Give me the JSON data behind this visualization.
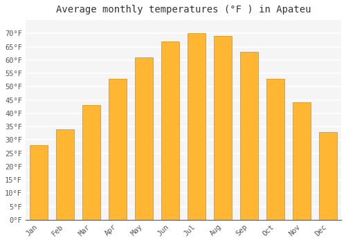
{
  "title": "Average monthly temperatures (°F ) in Apateu",
  "months": [
    "Jan",
    "Feb",
    "Mar",
    "Apr",
    "May",
    "Jun",
    "Jul",
    "Aug",
    "Sep",
    "Oct",
    "Nov",
    "Dec"
  ],
  "values": [
    28,
    34,
    43,
    53,
    61,
    67,
    70,
    69,
    63,
    53,
    44,
    33
  ],
  "bar_color": "#FFB733",
  "bar_edge_color": "#E8950A",
  "ylim": [
    0,
    75
  ],
  "yticks": [
    0,
    5,
    10,
    15,
    20,
    25,
    30,
    35,
    40,
    45,
    50,
    55,
    60,
    65,
    70
  ],
  "ytick_labels": [
    "0°F",
    "5°F",
    "10°F",
    "15°F",
    "20°F",
    "25°F",
    "30°F",
    "35°F",
    "40°F",
    "45°F",
    "50°F",
    "55°F",
    "60°F",
    "65°F",
    "70°F"
  ],
  "background_color": "#ffffff",
  "plot_bg_color": "#f5f5f5",
  "grid_color": "#ffffff",
  "title_fontsize": 10,
  "tick_fontsize": 7.5,
  "title_font_family": "monospace",
  "tick_font_family": "monospace",
  "tick_color": "#555555",
  "bar_width": 0.7
}
